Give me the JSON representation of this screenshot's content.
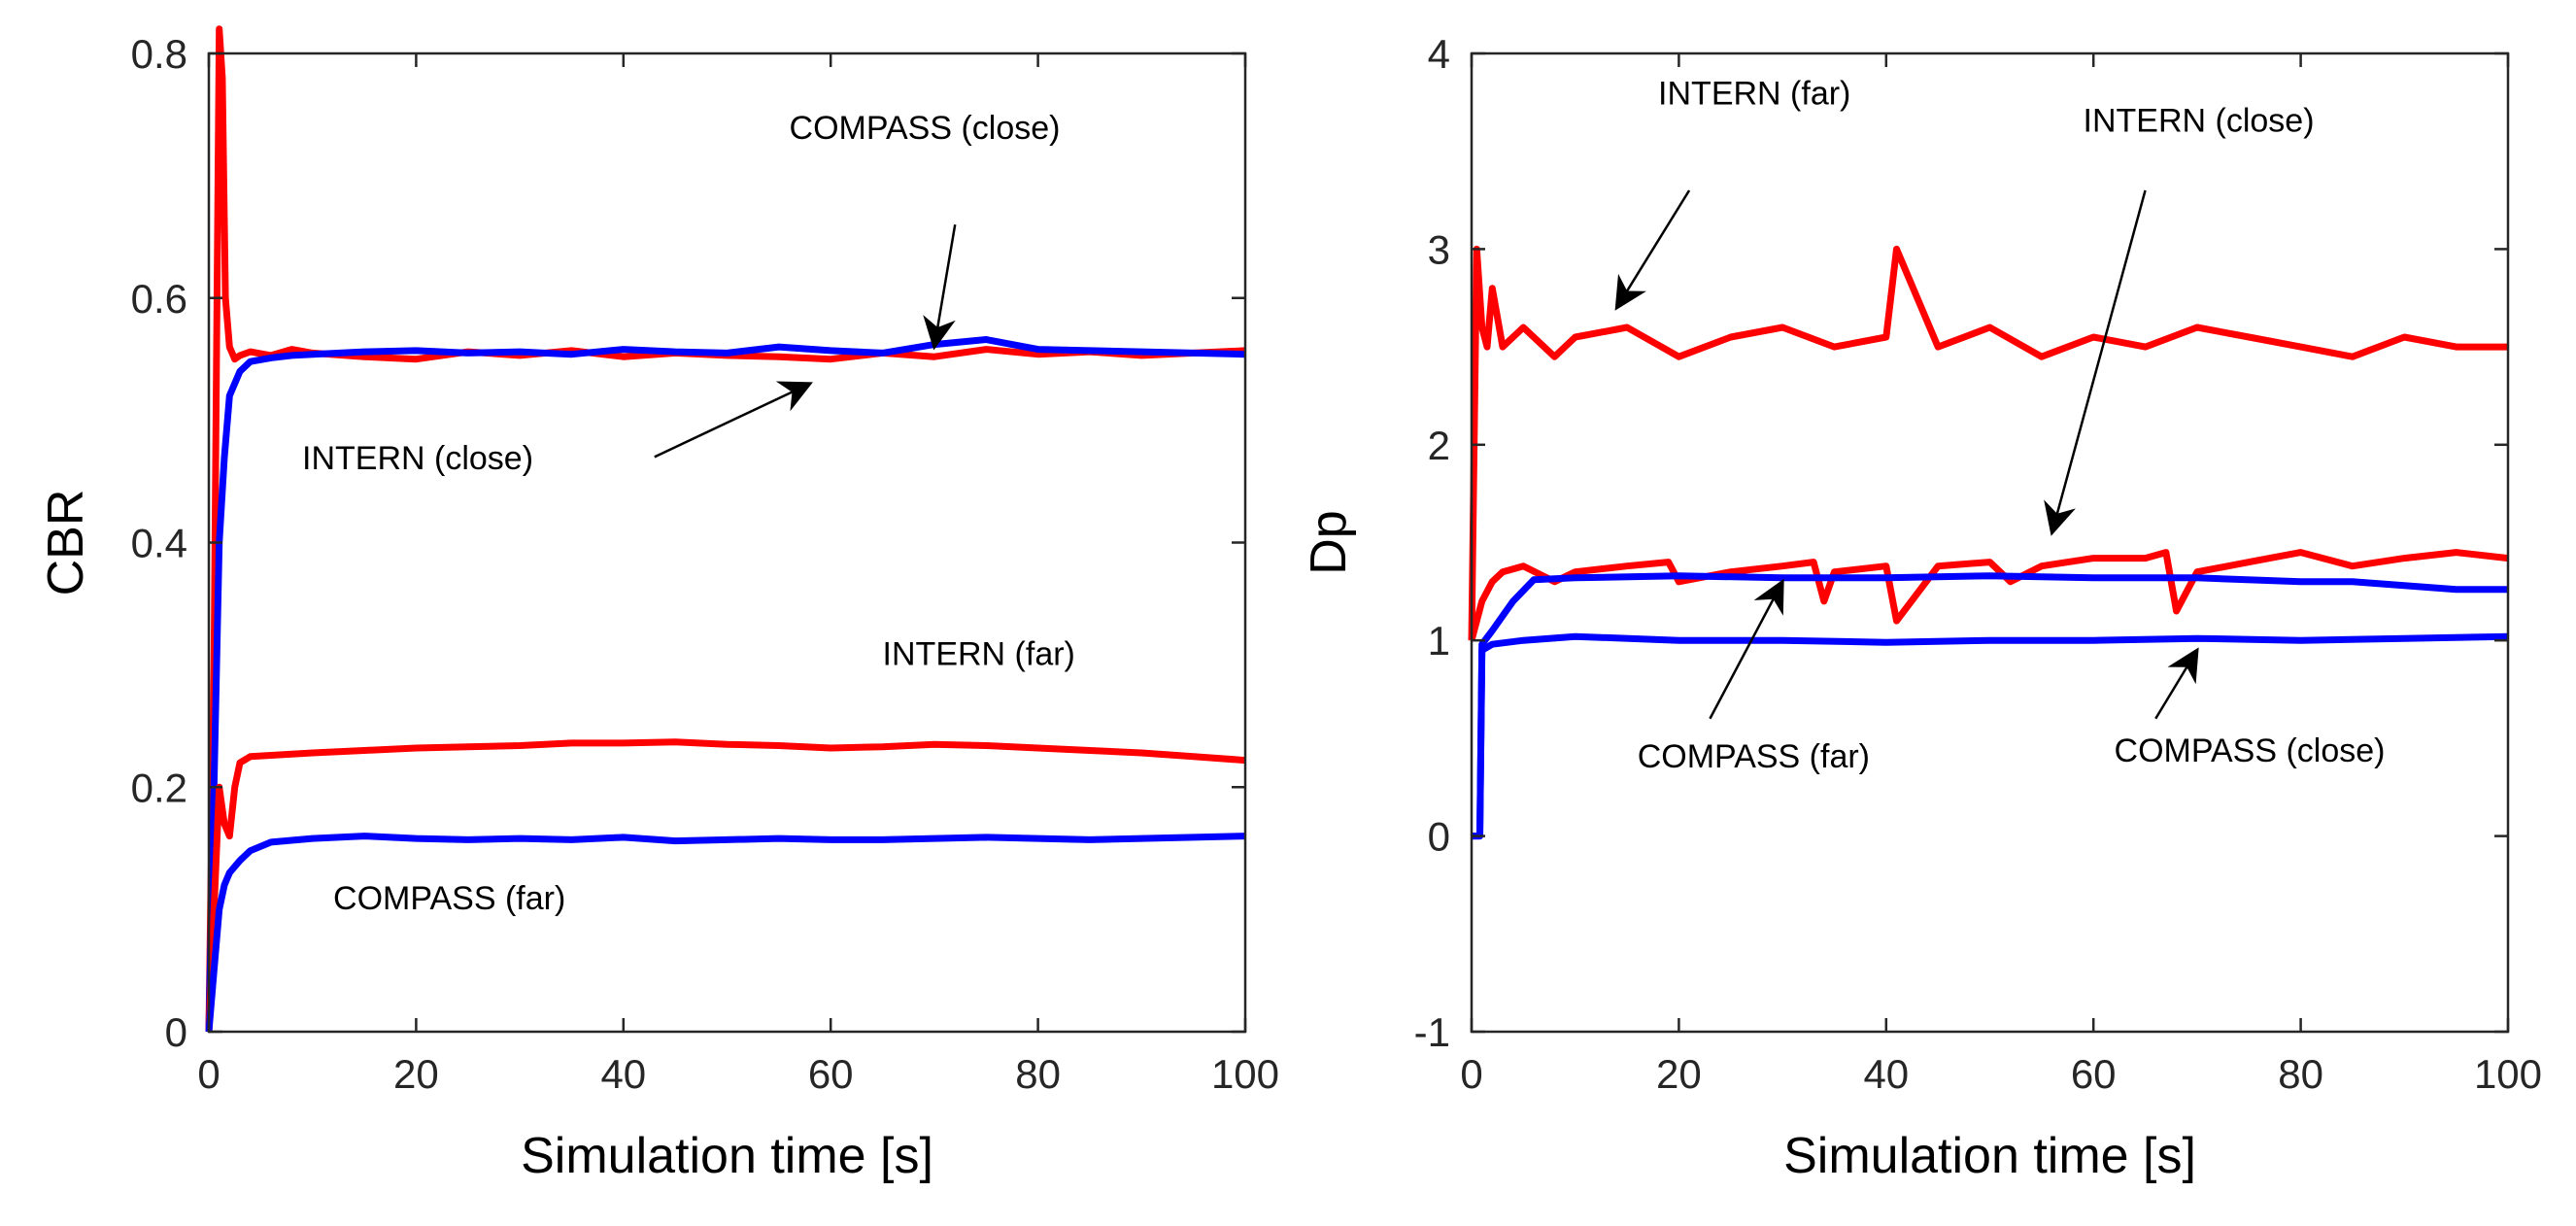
{
  "chart_data": [
    {
      "type": "line",
      "xlabel": "Simulation time [s]",
      "ylabel": "CBR",
      "xlim": [
        0,
        100
      ],
      "ylim": [
        0,
        0.8
      ],
      "xticks": [
        0,
        20,
        40,
        60,
        80,
        100
      ],
      "xtick_labels": [
        "0",
        "20",
        "40",
        "60",
        "80",
        "100"
      ],
      "yticks": [
        0,
        0.2,
        0.4,
        0.6,
        0.8
      ],
      "ytick_labels": [
        "0",
        "0.2",
        "0.4",
        "0.6",
        "0.8"
      ],
      "grid": false,
      "series": [
        {
          "color": "#ff0000",
          "x": [
            0,
            0.5,
            1,
            1.3,
            1.6,
            2,
            2.5,
            3,
            4,
            6,
            8,
            10,
            15,
            20,
            25,
            30,
            35,
            40,
            45,
            50,
            55,
            60,
            65,
            70,
            75,
            80,
            85,
            90,
            95,
            100
          ],
          "y": [
            0,
            0.3,
            0.82,
            0.78,
            0.6,
            0.56,
            0.55,
            0.553,
            0.556,
            0.553,
            0.558,
            0.555,
            0.552,
            0.55,
            0.556,
            0.553,
            0.557,
            0.552,
            0.555,
            0.553,
            0.552,
            0.55,
            0.555,
            0.552,
            0.558,
            0.554,
            0.556,
            0.553,
            0.555,
            0.557
          ]
        },
        {
          "color": "#0000ff",
          "x": [
            0,
            0.5,
            1,
            1.5,
            2,
            3,
            4,
            6,
            8,
            10,
            15,
            20,
            25,
            30,
            35,
            40,
            45,
            50,
            55,
            60,
            65,
            70,
            75,
            80,
            85,
            90,
            95,
            100
          ],
          "y": [
            0,
            0.2,
            0.4,
            0.47,
            0.52,
            0.54,
            0.548,
            0.551,
            0.553,
            0.554,
            0.556,
            0.557,
            0.555,
            0.556,
            0.554,
            0.558,
            0.556,
            0.555,
            0.56,
            0.557,
            0.555,
            0.562,
            0.566,
            0.558,
            0.557,
            0.556,
            0.555,
            0.554
          ]
        },
        {
          "color": "#ff0000",
          "x": [
            0,
            1,
            1.5,
            2,
            2.5,
            3,
            4,
            6,
            10,
            15,
            20,
            25,
            30,
            35,
            40,
            45,
            50,
            55,
            60,
            65,
            70,
            75,
            80,
            85,
            90,
            95,
            100
          ],
          "y": [
            0,
            0.2,
            0.17,
            0.16,
            0.2,
            0.22,
            0.225,
            0.226,
            0.228,
            0.23,
            0.232,
            0.233,
            0.234,
            0.236,
            0.236,
            0.237,
            0.235,
            0.234,
            0.232,
            0.233,
            0.235,
            0.234,
            0.232,
            0.23,
            0.228,
            0.225,
            0.222
          ]
        },
        {
          "color": "#0000ff",
          "x": [
            0,
            0.5,
            1,
            1.5,
            2,
            3,
            4,
            6,
            10,
            15,
            20,
            25,
            30,
            35,
            40,
            45,
            50,
            55,
            60,
            65,
            70,
            75,
            80,
            85,
            90,
            95,
            100
          ],
          "y": [
            0,
            0.05,
            0.1,
            0.12,
            0.13,
            0.14,
            0.148,
            0.155,
            0.158,
            0.16,
            0.158,
            0.157,
            0.158,
            0.157,
            0.159,
            0.156,
            0.157,
            0.158,
            0.157,
            0.157,
            0.158,
            0.159,
            0.158,
            0.157,
            0.158,
            0.159,
            0.16
          ]
        }
      ],
      "annotations": [
        {
          "text": "COMPASS (close)",
          "x": 56,
          "y": 0.73,
          "arrow_to": [
            70,
            0.56
          ],
          "arrow_from": [
            72,
            0.66
          ]
        },
        {
          "text": "INTERN (close)",
          "x": 9,
          "y": 0.46,
          "arrow_to": [
            58,
            0.53
          ],
          "arrow_from": [
            43,
            0.47
          ]
        },
        {
          "text": "INTERN (far)",
          "x": 65,
          "y": 0.3
        },
        {
          "text": "COMPASS (far)",
          "x": 12,
          "y": 0.1
        }
      ]
    },
    {
      "type": "line",
      "xlabel": "Simulation time  [s]",
      "ylabel": "Dp",
      "xlim": [
        0,
        100
      ],
      "ylim": [
        -1,
        4
      ],
      "xticks": [
        0,
        20,
        40,
        60,
        80,
        100
      ],
      "xtick_labels": [
        "0",
        "20",
        "40",
        "60",
        "80",
        "100"
      ],
      "yticks": [
        -1,
        0,
        1,
        2,
        3,
        4
      ],
      "ytick_labels": [
        "-1",
        "0",
        "1",
        "2",
        "3",
        "4"
      ],
      "grid": false,
      "series": [
        {
          "color": "#ff0000",
          "x": [
            0,
            0.5,
            1,
            1.5,
            2,
            3,
            5,
            8,
            10,
            15,
            20,
            25,
            30,
            35,
            40,
            41,
            45,
            50,
            55,
            60,
            65,
            70,
            75,
            80,
            85,
            90,
            95,
            100
          ],
          "y": [
            1,
            3,
            2.6,
            2.5,
            2.8,
            2.5,
            2.6,
            2.45,
            2.55,
            2.6,
            2.45,
            2.55,
            2.6,
            2.5,
            2.55,
            3,
            2.5,
            2.6,
            2.45,
            2.55,
            2.5,
            2.6,
            2.55,
            2.5,
            2.45,
            2.55,
            2.5,
            2.5
          ]
        },
        {
          "color": "#ff0000",
          "x": [
            0,
            0.5,
            1,
            2,
            3,
            5,
            8,
            10,
            15,
            19,
            20,
            25,
            30,
            33,
            34,
            35,
            40,
            41,
            45,
            50,
            52,
            55,
            60,
            65,
            67,
            68,
            70,
            75,
            80,
            85,
            90,
            95,
            100
          ],
          "y": [
            1,
            1.1,
            1.2,
            1.3,
            1.35,
            1.38,
            1.3,
            1.35,
            1.38,
            1.4,
            1.3,
            1.35,
            1.38,
            1.4,
            1.2,
            1.35,
            1.38,
            1.1,
            1.38,
            1.4,
            1.3,
            1.38,
            1.42,
            1.42,
            1.45,
            1.15,
            1.35,
            1.4,
            1.45,
            1.38,
            1.42,
            1.45,
            1.42
          ]
        },
        {
          "color": "#0000ff",
          "x": [
            0,
            0.8,
            1,
            2,
            4,
            6,
            10,
            20,
            30,
            40,
            50,
            60,
            70,
            80,
            85,
            90,
            95,
            100
          ],
          "y": [
            0,
            0,
            0.98,
            1.05,
            1.2,
            1.31,
            1.32,
            1.33,
            1.32,
            1.32,
            1.33,
            1.32,
            1.32,
            1.3,
            1.3,
            1.28,
            1.26,
            1.26
          ]
        },
        {
          "color": "#0000ff",
          "x": [
            0,
            0.8,
            1,
            2,
            5,
            10,
            20,
            30,
            40,
            50,
            60,
            70,
            80,
            90,
            100
          ],
          "y": [
            0,
            0,
            0.95,
            0.98,
            1.0,
            1.02,
            1.0,
            1.0,
            0.99,
            1.0,
            1.0,
            1.01,
            1.0,
            1.01,
            1.02
          ]
        }
      ],
      "annotations": [
        {
          "text": "INTERN (far)",
          "x": 18,
          "y": 3.74,
          "arrow_to": [
            14,
            2.7
          ],
          "arrow_from": [
            21,
            3.3
          ]
        },
        {
          "text": "INTERN (close)",
          "x": 59,
          "y": 3.6,
          "arrow_to": [
            56,
            1.55
          ],
          "arrow_from": [
            65,
            3.3
          ]
        },
        {
          "text": "COMPASS (far)",
          "x": 16,
          "y": 0.35,
          "arrow_to": [
            30,
            1.3
          ],
          "arrow_from": [
            23,
            0.6
          ]
        },
        {
          "text": "COMPASS (close)",
          "x": 62,
          "y": 0.38,
          "arrow_to": [
            70,
            0.95
          ],
          "arrow_from": [
            66,
            0.6
          ]
        }
      ]
    }
  ]
}
